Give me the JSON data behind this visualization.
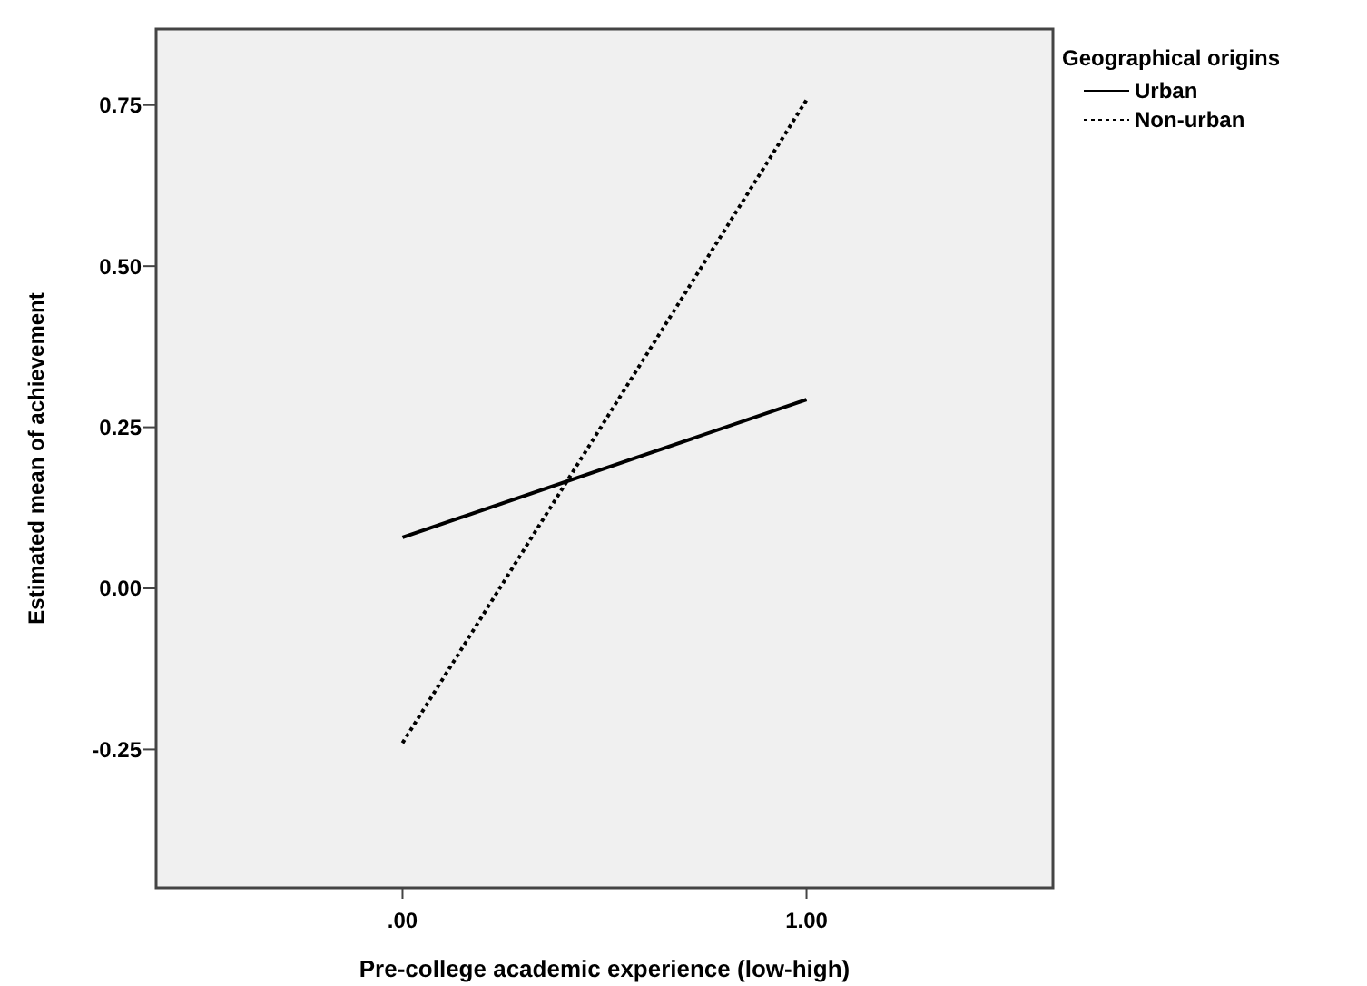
{
  "chart_data": {
    "type": "line",
    "xlabel": "Pre-college academic experience (low-high)",
    "ylabel": "Estimated mean of achievement",
    "legend_title": "Geographical origins",
    "legend": "top right",
    "x": [
      0,
      1
    ],
    "series": [
      {
        "name": "Urban",
        "color": "#000000",
        "values": [
          0.079,
          0.293
        ],
        "line_style": "solid"
      },
      {
        "name": "Non-urban",
        "color": "#000000",
        "values": [
          -0.24,
          0.758
        ],
        "line_style": "dotted"
      }
    ],
    "xlim": [
      -0.61,
      1.61
    ],
    "xticks": [
      {
        "value": 0,
        "label": ".00"
      },
      {
        "value": 1,
        "label": "1.00"
      }
    ],
    "ylim": [
      -0.465,
      0.868
    ],
    "yticks": [
      {
        "value": -0.25,
        "label": "-0.25"
      },
      {
        "value": 0,
        "label": "0.00"
      },
      {
        "value": 0.25,
        "label": "0.25"
      },
      {
        "value": 0.5,
        "label": "0.50"
      },
      {
        "value": 0.75,
        "label": "0.75"
      }
    ],
    "grid": false,
    "marker": "none"
  }
}
